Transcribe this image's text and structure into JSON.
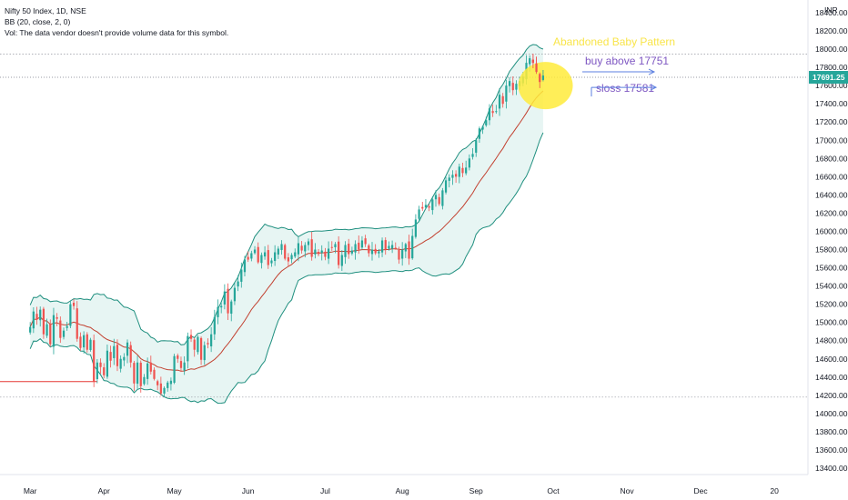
{
  "legend": {
    "line1": "Nifty 50 Index, 1D, NSE",
    "line2": "BB (20, close, 2, 0)",
    "line3": "Vol: The data vendor doesn't provide volume data for this symbol."
  },
  "currency": "INR",
  "last_price": "17691.25",
  "colors": {
    "up": "#26a69a",
    "down": "#ef5350",
    "band": "#1f8f7f",
    "basis": "#c2402f",
    "fill": "#e7f5f3",
    "badge": "#26a69a",
    "annotation_text": "#7e57c2",
    "highlight": "#ffeb3b",
    "title": "#f9e54a",
    "arrow": "#5b7fe0",
    "hline": "#e53935"
  },
  "chart_data": {
    "type": "candlestick",
    "y_ticks": [
      13400,
      13600,
      13800,
      14000,
      14200,
      14400,
      14600,
      14800,
      15000,
      15200,
      15400,
      15600,
      15800,
      16000,
      16200,
      16400,
      16600,
      16800,
      17000,
      17200,
      17400,
      17600,
      17800,
      18000,
      18200,
      18400
    ],
    "y_tick_labels": [
      "13400.00",
      "13600.00",
      "13800.00",
      "14000.00",
      "14200.00",
      "14400.00",
      "14600.00",
      "14800.00",
      "15000.00",
      "15200.00",
      "15400.00",
      "15600.00",
      "15800.00",
      "16000.00",
      "16200.00",
      "16400.00",
      "16600.00",
      "16800.00",
      "17000.00",
      "17200.00",
      "17400.00",
      "17600.00",
      "17800.00",
      "18000.00",
      "18200.00",
      "18400.00"
    ],
    "ylim": [
      13330,
      18420
    ],
    "x_ticks": [
      "Mar",
      "Apr",
      "May",
      "Jun",
      "Jul",
      "Aug",
      "Sep",
      "Oct",
      "Nov",
      "Dec",
      "20"
    ],
    "x_tick_index": [
      0,
      22,
      43,
      65,
      88,
      111,
      133,
      156,
      178,
      200,
      222
    ],
    "x_range": [
      -9,
      232
    ],
    "close": [
      14950,
      15120,
      15030,
      15140,
      14870,
      14980,
      14760,
      15080,
      15040,
      14830,
      14910,
      14960,
      15200,
      15180,
      14820,
      14720,
      14860,
      14700,
      14810,
      14350,
      14560,
      14510,
      14420,
      14690,
      14580,
      14740,
      14520,
      14600,
      14620,
      14780,
      14560,
      14330,
      14560,
      14300,
      14400,
      14550,
      14460,
      14380,
      14310,
      14220,
      14280,
      14340,
      14360,
      14630,
      14600,
      14500,
      14560,
      14850,
      14820,
      14700,
      14840,
      14590,
      14750,
      14760,
      14870,
      15060,
      15170,
      15180,
      15340,
      15100,
      15230,
      15380,
      15450,
      15580,
      15690,
      15690,
      15760,
      15800,
      15660,
      15740,
      15770,
      15630,
      15680,
      15770,
      15810,
      15860,
      15700,
      15670,
      15740,
      15770,
      15870,
      15790,
      15850,
      15890,
      15720,
      15800,
      15750,
      15790,
      15720,
      15810,
      15820,
      15860,
      15630,
      15740,
      15850,
      15750,
      15790,
      15860,
      15800,
      15900,
      15860,
      15760,
      15800,
      15760,
      15780,
      15900,
      15800,
      15840,
      15850,
      15820,
      15690,
      15800,
      15860,
      15700,
      15950,
      16130,
      16240,
      16250,
      16290,
      16260,
      16350,
      16400,
      16300,
      16450,
      16560,
      16590,
      16620,
      16600,
      16710,
      16640,
      16700,
      16800,
      16850,
      17000,
      17130,
      17150,
      17220,
      17350,
      17300,
      17320,
      17500,
      17400,
      17600,
      17650,
      17550,
      17620,
      17650,
      17700,
      17850,
      17900,
      17850,
      17750,
      17640,
      17710
    ],
    "pattern": {
      "title": "Abandoned Baby  Pattern",
      "buy_label": "buy above 17751",
      "buy_level": 17751,
      "sl_label": "sloss 17581",
      "sl_level": 17581,
      "high_ref_level": 17945,
      "last_ref_level": 17691.25
    },
    "support_level": 14350,
    "bottom_ref_level": 14180,
    "bollinger": {
      "period": 20,
      "stddev": 2
    }
  }
}
